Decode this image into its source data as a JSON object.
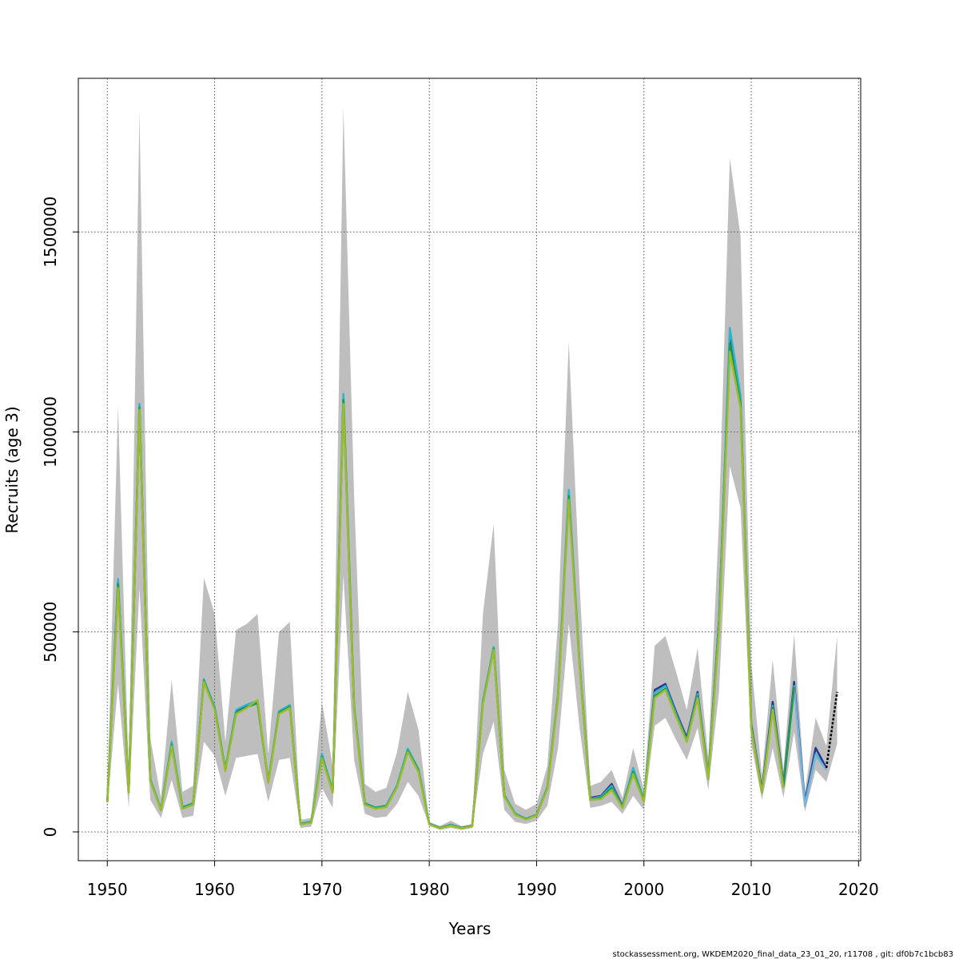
{
  "chart_data": {
    "type": "line",
    "xlabel": "Years",
    "ylabel": "Recruits (age 3)",
    "xlim": [
      1947.3,
      2020.2
    ],
    "ylim": [
      -72000,
      1884000
    ],
    "x_ticks": [
      1950,
      1960,
      1970,
      1980,
      1990,
      2000,
      2010,
      2020
    ],
    "y_ticks": [
      0,
      500000,
      1000000,
      1500000
    ],
    "grid": true,
    "confidence_band_color": "#bebebe",
    "band": {
      "x": [
        1950,
        1951,
        1952,
        1953,
        1954,
        1955,
        1956,
        1957,
        1958,
        1959,
        1960,
        1961,
        1962,
        1963,
        1964,
        1965,
        1966,
        1967,
        1968,
        1969,
        1970,
        1971,
        1972,
        1973,
        1974,
        1975,
        1976,
        1977,
        1978,
        1979,
        1980,
        1981,
        1982,
        1983,
        1984,
        1985,
        1986,
        1987,
        1988,
        1989,
        1990,
        1991,
        1992,
        1993,
        1994,
        1995,
        1996,
        1997,
        1998,
        1999,
        2000,
        2001,
        2002,
        2003,
        2004,
        2005,
        2006,
        2007,
        2008,
        2009,
        2010,
        2011,
        2012,
        2013,
        2014,
        2015,
        2016,
        2017,
        2018
      ],
      "lower": [
        60000,
        370000,
        60000,
        610000,
        80000,
        35000,
        130000,
        35000,
        40000,
        225000,
        190000,
        90000,
        185000,
        190000,
        195000,
        75000,
        180000,
        185000,
        10000,
        13000,
        110000,
        60000,
        640000,
        180000,
        45000,
        35000,
        38000,
        70000,
        125000,
        90000,
        15000,
        5000,
        10000,
        5000,
        10000,
        195000,
        275000,
        55000,
        25000,
        20000,
        28000,
        65000,
        210000,
        520000,
        260000,
        60000,
        65000,
        75000,
        45000,
        90000,
        55000,
        265000,
        285000,
        230000,
        180000,
        260000,
        105000,
        350000,
        915000,
        810000,
        220000,
        80000,
        210000,
        85000,
        250000,
        50000,
        155000,
        125000,
        220000
      ],
      "upper": [
        95000,
        1065000,
        140000,
        1800000,
        235000,
        85000,
        380000,
        100000,
        115000,
        635000,
        545000,
        225000,
        505000,
        520000,
        545000,
        195000,
        500000,
        525000,
        30000,
        35000,
        325000,
        165000,
        1810000,
        840000,
        120000,
        100000,
        110000,
        200000,
        350000,
        255000,
        25000,
        15000,
        28000,
        15000,
        20000,
        545000,
        770000,
        155000,
        70000,
        55000,
        70000,
        165000,
        525000,
        1225000,
        620000,
        115000,
        125000,
        155000,
        85000,
        210000,
        105000,
        465000,
        490000,
        400000,
        305000,
        460000,
        185000,
        780000,
        1685000,
        1490000,
        425000,
        140000,
        430000,
        155000,
        495000,
        100000,
        285000,
        215000,
        490000
      ]
    },
    "series": [
      {
        "color": "#27368c",
        "x": [
          1950,
          1951,
          1952,
          1953,
          1954,
          1955,
          1956,
          1957,
          1958,
          1959,
          1960,
          1961,
          1962,
          1963,
          1964,
          1965,
          1966,
          1967,
          1968,
          1969,
          1970,
          1971,
          1972,
          1973,
          1974,
          1975,
          1976,
          1977,
          1978,
          1979,
          1980,
          1981,
          1982,
          1983,
          1984,
          1985,
          1986,
          1987,
          1988,
          1989,
          1990,
          1991,
          1992,
          1993,
          1994,
          1995,
          1996,
          1997,
          1998,
          1999,
          2000,
          2001,
          2002,
          2003,
          2004,
          2005,
          2006,
          2007,
          2008,
          2009,
          2010,
          2011,
          2012,
          2013,
          2014,
          2015,
          2016,
          2017
        ],
        "values": [
          75000,
          625000,
          100000,
          1065000,
          130000,
          55000,
          220000,
          60000,
          70000,
          380000,
          310000,
          155000,
          300000,
          315000,
          325000,
          125000,
          300000,
          315000,
          20000,
          25000,
          190000,
          100000,
          1085000,
          310000,
          70000,
          60000,
          65000,
          115000,
          205000,
          155000,
          20000,
          10000,
          18000,
          10000,
          15000,
          325000,
          460000,
          90000,
          45000,
          32000,
          42000,
          110000,
          340000,
          845000,
          420000,
          85000,
          90000,
          120000,
          65000,
          155000,
          80000,
          355000,
          370000,
          300000,
          235000,
          350000,
          140000,
          530000,
          1240000,
          1080000,
          270000,
          105000,
          325000,
          120000,
          375000,
          75000,
          210000,
          160000
        ]
      },
      {
        "color": "#2bb6ce",
        "x": [
          1950,
          1951,
          1952,
          1953,
          1954,
          1955,
          1956,
          1957,
          1958,
          1959,
          1960,
          1961,
          1962,
          1963,
          1964,
          1965,
          1966,
          1967,
          1968,
          1969,
          1970,
          1971,
          1972,
          1973,
          1974,
          1975,
          1976,
          1977,
          1978,
          1979,
          1980,
          1981,
          1982,
          1983,
          1984,
          1985,
          1986,
          1987,
          1988,
          1989,
          1990,
          1991,
          1992,
          1993,
          1994,
          1995,
          1996,
          1997,
          1998,
          1999,
          2000,
          2001,
          2002,
          2003,
          2004,
          2005,
          2006,
          2007,
          2008,
          2009,
          2010,
          2011,
          2012,
          2013,
          2014,
          2015,
          2016,
          2017
        ],
        "values": [
          78000,
          632000,
          102000,
          1070000,
          132000,
          57000,
          225000,
          62000,
          72000,
          382000,
          312000,
          157000,
          305000,
          318000,
          328000,
          127000,
          302000,
          317000,
          21000,
          26000,
          195000,
          102000,
          1095000,
          315000,
          72000,
          61000,
          66000,
          117000,
          208000,
          157000,
          21000,
          10000,
          18000,
          10000,
          15000,
          328000,
          462000,
          92000,
          46000,
          33000,
          43000,
          112000,
          345000,
          855000,
          425000,
          82000,
          88000,
          115000,
          63000,
          160000,
          80000,
          348000,
          365000,
          295000,
          230000,
          345000,
          138000,
          525000,
          1260000,
          1090000,
          265000,
          100000,
          315000,
          115000,
          365000,
          70000,
          195000,
          155000
        ]
      },
      {
        "color": "#7fb0da",
        "x": [
          2014,
          2015,
          2016,
          2017
        ],
        "values": [
          360000,
          65000,
          190000,
          155000
        ]
      },
      {
        "color": "#1e9a48",
        "x": [
          1950,
          1951,
          1952,
          1953,
          1954,
          1955,
          1956,
          1957,
          1958,
          1959,
          1960,
          1961,
          1962,
          1963,
          1964,
          1965,
          1966,
          1967,
          1968,
          1969,
          1970,
          1971,
          1972,
          1973,
          1974,
          1975,
          1976,
          1977,
          1978,
          1979,
          1980,
          1981,
          1982,
          1983,
          1984,
          1985,
          1986,
          1987,
          1988,
          1989,
          1990,
          1991,
          1992,
          1993,
          1994,
          1995,
          1996,
          1997,
          1998,
          1999,
          2000,
          2001,
          2002,
          2003,
          2004,
          2005,
          2006,
          2007,
          2008,
          2009,
          2010,
          2011,
          2012,
          2013,
          2014
        ],
        "values": [
          76000,
          620000,
          100000,
          1060000,
          130000,
          55000,
          218000,
          60000,
          70000,
          378000,
          308000,
          155000,
          298000,
          312000,
          322000,
          125000,
          298000,
          313000,
          20000,
          24000,
          188000,
          100000,
          1080000,
          308000,
          70000,
          60000,
          64000,
          113000,
          203000,
          153000,
          20000,
          10000,
          17000,
          10000,
          15000,
          323000,
          458000,
          90000,
          44000,
          32000,
          42000,
          110000,
          338000,
          840000,
          418000,
          80000,
          85000,
          110000,
          62000,
          150000,
          78000,
          340000,
          358000,
          290000,
          228000,
          340000,
          135000,
          515000,
          1220000,
          1070000,
          262000,
          100000,
          310000,
          112000,
          362000
        ]
      },
      {
        "color": "#9bbb2f",
        "x": [
          1950,
          1951,
          1952,
          1953,
          1954,
          1955,
          1956,
          1957,
          1958,
          1959,
          1960,
          1961,
          1962,
          1963,
          1964,
          1965,
          1966,
          1967,
          1968,
          1969,
          1970,
          1971,
          1972,
          1973,
          1974,
          1975,
          1976,
          1977,
          1978,
          1979,
          1980,
          1981,
          1982,
          1983,
          1984,
          1985,
          1986,
          1987,
          1988,
          1989,
          1990,
          1991,
          1992,
          1993,
          1994,
          1995,
          1996,
          1997,
          1998,
          1999,
          2000,
          2001,
          2002,
          2003,
          2004,
          2005,
          2006,
          2007,
          2008,
          2009,
          2010,
          2011,
          2012,
          2013
        ],
        "values": [
          74000,
          610000,
          98000,
          1055000,
          128000,
          54000,
          215000,
          58000,
          68000,
          375000,
          305000,
          152000,
          295000,
          310000,
          330000,
          123000,
          295000,
          310000,
          19000,
          23000,
          185000,
          98000,
          1070000,
          305000,
          68000,
          58000,
          62000,
          112000,
          200000,
          150000,
          19000,
          9000,
          16000,
          9000,
          14000,
          320000,
          455000,
          88000,
          43000,
          31000,
          41000,
          108000,
          335000,
          830000,
          415000,
          80000,
          82000,
          105000,
          60000,
          145000,
          75000,
          335000,
          355000,
          288000,
          225000,
          335000,
          132000,
          505000,
          1200000,
          1060000,
          258000,
          98000,
          305000,
          110000
        ]
      },
      {
        "color": "#000000",
        "dashed": true,
        "x": [
          2017,
          2018
        ],
        "values": [
          160000,
          350000
        ]
      }
    ]
  },
  "footer_text": "stockassessment.org, WKDEM2020_final_data_23_01_20, r11708 , git: df0b7c1bcb83"
}
